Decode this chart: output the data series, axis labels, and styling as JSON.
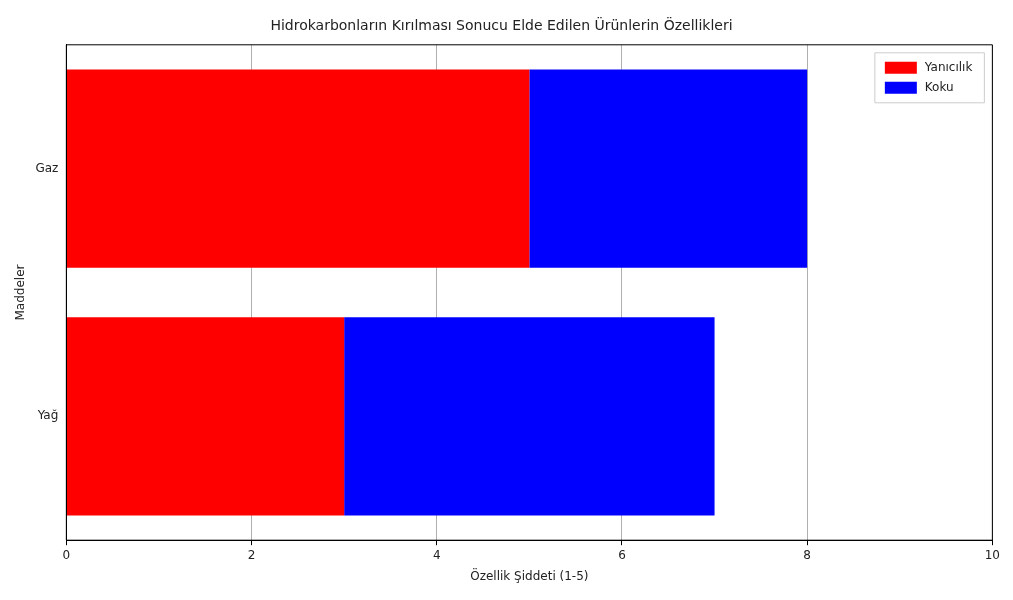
{
  "chart_data": {
    "type": "bar",
    "orientation": "horizontal",
    "stacked": true,
    "title": "Hidrokarbonların Kırılması Sonucu Elde Edilen Ürünlerin Özellikleri",
    "xlabel": "Özellik Şiddeti (1-5)",
    "ylabel": "Maddeler",
    "categories": [
      "Gaz",
      "Yağ"
    ],
    "series": [
      {
        "name": "Yanıcılık",
        "color": "#ff0000",
        "values": [
          5,
          3
        ]
      },
      {
        "name": "Koku",
        "color": "#0000ff",
        "values": [
          3,
          4
        ]
      }
    ],
    "xlim": [
      0,
      10
    ],
    "xticks": [
      0,
      2,
      4,
      6,
      8,
      10
    ],
    "grid": "x",
    "legend": "top right"
  }
}
